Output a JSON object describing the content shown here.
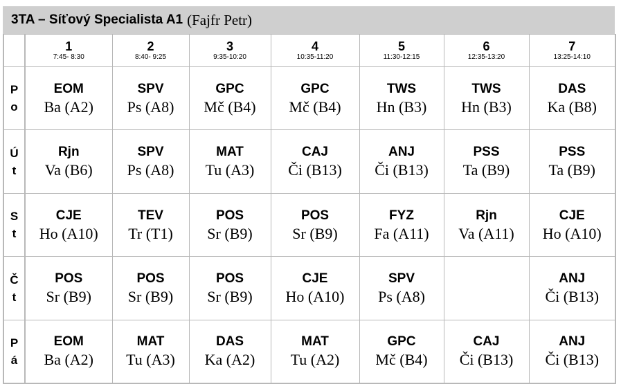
{
  "header": {
    "class_title": "3TA – Síťový Specialista A1",
    "teacher": "(Fajfr Petr)"
  },
  "periods": [
    {
      "num": "1",
      "time": "7:45- 8:30"
    },
    {
      "num": "2",
      "time": "8:40- 9:25"
    },
    {
      "num": "3",
      "time": "9:35-10:20"
    },
    {
      "num": "4",
      "time": "10:35-11:20"
    },
    {
      "num": "5",
      "time": "11:30-12:15"
    },
    {
      "num": "6",
      "time": "12:35-13:20"
    },
    {
      "num": "7",
      "time": "13:25-14:10"
    }
  ],
  "days": [
    {
      "l1": "P",
      "l2": "o",
      "lessons": [
        {
          "subject": "EOM",
          "room": "Ba (A2)"
        },
        {
          "subject": "SPV",
          "room": "Ps (A8)"
        },
        {
          "subject": "GPC",
          "room": "Mč (B4)"
        },
        {
          "subject": "GPC",
          "room": "Mč (B4)"
        },
        {
          "subject": "TWS",
          "room": "Hn (B3)"
        },
        {
          "subject": "TWS",
          "room": "Hn (B3)"
        },
        {
          "subject": "DAS",
          "room": "Ka (B8)"
        }
      ]
    },
    {
      "l1": "Ú",
      "l2": "t",
      "lessons": [
        {
          "subject": "Rjn",
          "room": "Va (B6)"
        },
        {
          "subject": "SPV",
          "room": "Ps (A8)"
        },
        {
          "subject": "MAT",
          "room": "Tu (A3)"
        },
        {
          "subject": "CAJ",
          "room": "Či (B13)"
        },
        {
          "subject": "ANJ",
          "room": "Či (B13)"
        },
        {
          "subject": "PSS",
          "room": "Ta (B9)"
        },
        {
          "subject": "PSS",
          "room": "Ta (B9)"
        }
      ]
    },
    {
      "l1": "S",
      "l2": "t",
      "lessons": [
        {
          "subject": "CJE",
          "room": "Ho (A10)"
        },
        {
          "subject": "TEV",
          "room": "Tr (T1)"
        },
        {
          "subject": "POS",
          "room": "Sr (B9)"
        },
        {
          "subject": "POS",
          "room": "Sr (B9)"
        },
        {
          "subject": "FYZ",
          "room": "Fa (A11)"
        },
        {
          "subject": "Rjn",
          "room": "Va (A11)"
        },
        {
          "subject": "CJE",
          "room": "Ho (A10)"
        }
      ]
    },
    {
      "l1": "Č",
      "l2": "t",
      "lessons": [
        {
          "subject": "POS",
          "room": "Sr (B9)"
        },
        {
          "subject": "POS",
          "room": "Sr (B9)"
        },
        {
          "subject": "POS",
          "room": "Sr (B9)"
        },
        {
          "subject": "CJE",
          "room": "Ho (A10)"
        },
        {
          "subject": "SPV",
          "room": "Ps (A8)"
        },
        {
          "subject": "",
          "room": ""
        },
        {
          "subject": "ANJ",
          "room": "Či (B13)"
        }
      ]
    },
    {
      "l1": "P",
      "l2": "á",
      "lessons": [
        {
          "subject": "EOM",
          "room": "Ba (A2)"
        },
        {
          "subject": "MAT",
          "room": "Tu (A3)"
        },
        {
          "subject": "DAS",
          "room": "Ka (A2)"
        },
        {
          "subject": "MAT",
          "room": "Tu (A2)"
        },
        {
          "subject": "GPC",
          "room": "Mč (B4)"
        },
        {
          "subject": "CAJ",
          "room": "Či (B13)"
        },
        {
          "subject": "ANJ",
          "room": "Či (B13)"
        }
      ]
    }
  ]
}
